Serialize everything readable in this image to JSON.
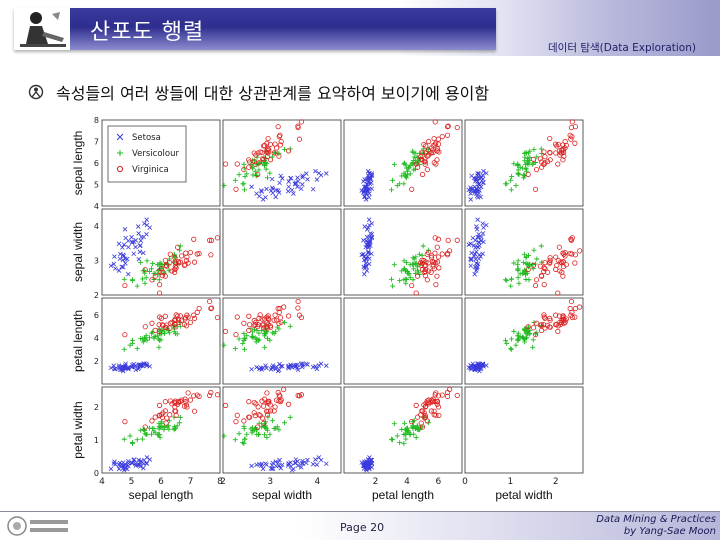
{
  "slide": {
    "title": "산포도 행렬",
    "subtitle": "데이터 탐색(Data Exploration)",
    "bullet": "속성들의 여러 쌍들에 대한 상관관계를 요약하여 보이기에 용이함",
    "page": "Page 20",
    "credit_line1": "Data Mining & Practices",
    "credit_line2": "by Yang-Sae Moon"
  },
  "chart_data": {
    "type": "scatter",
    "layout": "scatter-matrix",
    "variables": [
      "sepal length",
      "sepal width",
      "petal length",
      "petal width"
    ],
    "ranges": [
      [
        4,
        8
      ],
      [
        2,
        4.5
      ],
      [
        0,
        7.5
      ],
      [
        0,
        2.6
      ]
    ],
    "ticks": [
      [
        4,
        5,
        6,
        7,
        8
      ],
      [
        2,
        3,
        4
      ],
      [
        2,
        4,
        6
      ],
      [
        0,
        1,
        2
      ]
    ],
    "legend": {
      "placement": "top-left panel (sepal length vs sepal width)"
    },
    "grid": false,
    "series": [
      {
        "name": "Setosa",
        "marker": "x",
        "color": "#3b3bdd",
        "centroid": [
          5.0,
          3.4,
          1.5,
          0.25
        ],
        "spread": [
          0.35,
          0.38,
          0.17,
          0.1
        ]
      },
      {
        "name": "Versicolour",
        "marker": "+",
        "color": "#22bb22",
        "centroid": [
          5.9,
          2.77,
          4.26,
          1.33
        ],
        "spread": [
          0.5,
          0.31,
          0.47,
          0.2
        ]
      },
      {
        "name": "Virginica",
        "marker": "o",
        "color": "#dd2222",
        "centroid": [
          6.6,
          2.97,
          5.55,
          2.03
        ],
        "spread": [
          0.63,
          0.32,
          0.55,
          0.27
        ]
      }
    ]
  }
}
